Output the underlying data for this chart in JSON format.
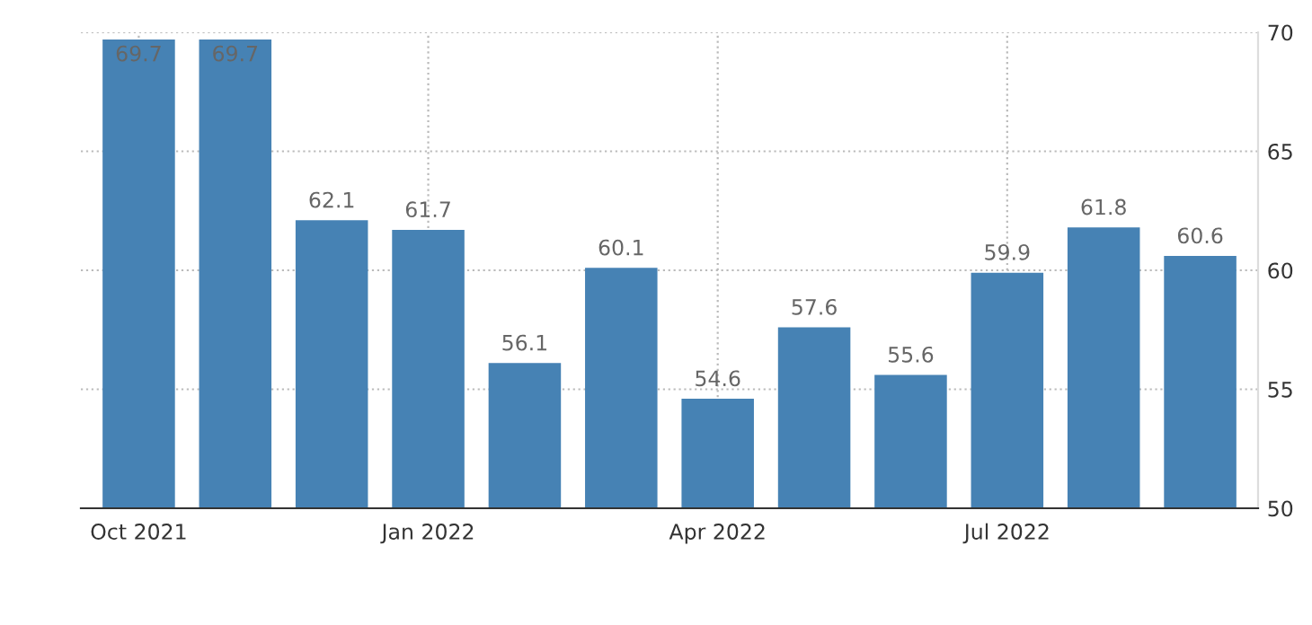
{
  "chart_data": {
    "type": "bar",
    "categories": [
      "Oct 2021",
      null,
      null,
      "Jan 2022",
      null,
      null,
      "Apr 2022",
      null,
      null,
      "Jul 2022",
      null,
      null
    ],
    "values": [
      69.7,
      69.7,
      62.1,
      61.7,
      56.1,
      60.1,
      54.6,
      57.6,
      55.6,
      59.9,
      61.8,
      60.6
    ],
    "color": "#4682b4",
    "ylim": [
      50,
      70
    ],
    "yticks": [
      50,
      55,
      60,
      65,
      70
    ],
    "grid": true,
    "data_labels": true,
    "legend": false
  }
}
